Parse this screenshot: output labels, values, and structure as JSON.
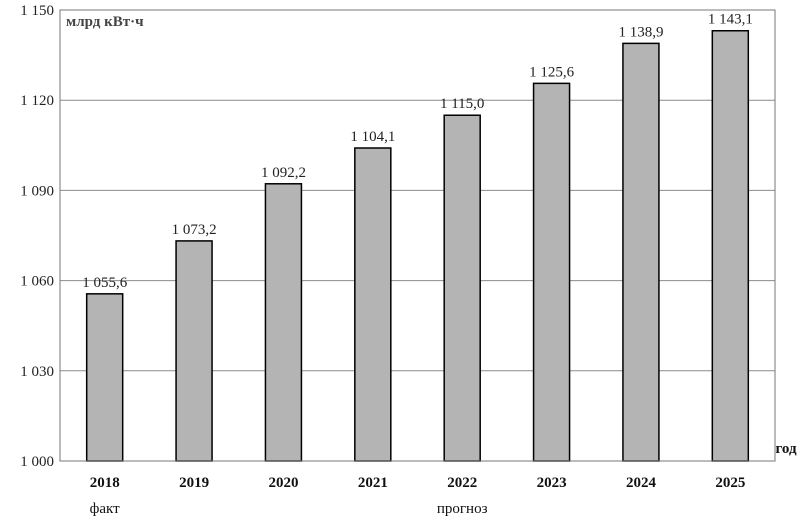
{
  "chart_data": {
    "type": "bar",
    "ylabel": "млрд кВт·ч",
    "xlabel": "год",
    "categories": [
      "2018",
      "2019",
      "2020",
      "2021",
      "2022",
      "2023",
      "2024",
      "2025"
    ],
    "values": [
      1055.6,
      1073.2,
      1092.2,
      1104.1,
      1115.0,
      1125.6,
      1138.9,
      1143.1
    ],
    "value_labels": [
      "1 055,6",
      "1 073,2",
      "1 092,2",
      "1 104,1",
      "1 115,0",
      "1 125,6",
      "1 138,9",
      "1 143,1"
    ],
    "ylim": [
      1000,
      1150
    ],
    "yticks": [
      1000,
      1030,
      1060,
      1090,
      1120,
      1150
    ],
    "ytick_labels": [
      "1 000",
      "1 030",
      "1 060",
      "1 090",
      "1 120",
      "1 150"
    ],
    "grid": true,
    "notes": {
      "fact": "факт",
      "forecast": "прогноз"
    },
    "colors": {
      "bar_fill": "#b4b4b4",
      "bar_stroke": "#000000",
      "grid": "#8c8c8c",
      "frame": "#777777"
    }
  }
}
